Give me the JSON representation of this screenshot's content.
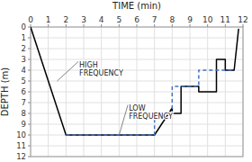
{
  "chart_data": {
    "type": "line",
    "x_label": "TIME (min)",
    "y_label": "DEPTH (m)",
    "xlim": [
      0,
      12
    ],
    "ylim": [
      12,
      0
    ],
    "xticks": [
      0,
      1,
      2,
      3,
      4,
      5,
      6,
      7,
      8,
      9,
      10,
      11,
      12
    ],
    "yticks": [
      0,
      1,
      2,
      3,
      4,
      5,
      6,
      7,
      8,
      9,
      10,
      11,
      12
    ],
    "grid": true,
    "series": [
      {
        "color": "#000000",
        "line_style": "solid",
        "x": [
          0,
          2,
          7,
          8,
          8.0,
          8.5,
          8.5,
          9.5,
          9.5,
          10.5,
          10.5,
          11.0,
          11.0,
          11.5,
          11.75
        ],
        "values": [
          0,
          10,
          10,
          7.5,
          8.0,
          8.0,
          5.5,
          5.5,
          6.0,
          6.0,
          3.0,
          3.0,
          4.0,
          4.0,
          0.2
        ]
      },
      {
        "color": "#4472c4",
        "line_style": "dashed",
        "x": [
          2,
          7,
          7.0,
          8.0,
          8.0,
          9.5,
          9.5,
          11.5
        ],
        "values": [
          10,
          10,
          8.0,
          8.0,
          5.5,
          5.5,
          4.0,
          4.0
        ]
      }
    ],
    "annotations": [
      {
        "text": "HIGH\nFREQUENCY",
        "xy": [
          1.5,
          5.0
        ],
        "xytext": [
          2.7,
          3.2
        ]
      },
      {
        "text": "LOW\nFREQUENCY",
        "xy": [
          5.0,
          10.0
        ],
        "xytext": [
          5.5,
          7.2
        ]
      }
    ]
  }
}
